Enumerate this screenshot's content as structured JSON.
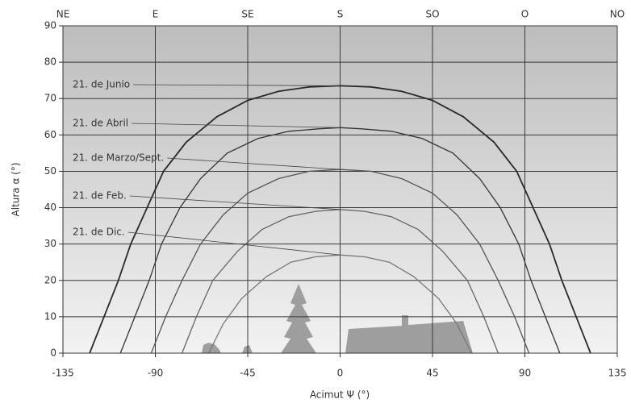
{
  "chart_data": {
    "type": "line",
    "xlabel": "Acimut Ψ (°)",
    "ylabel": "Altura α (°)",
    "xlim": [
      -135,
      135
    ],
    "ylim": [
      0,
      90
    ],
    "xticks": [
      -135,
      -90,
      -45,
      0,
      45,
      90,
      135
    ],
    "yticks": [
      0,
      10,
      20,
      30,
      40,
      50,
      60,
      70,
      80,
      90
    ],
    "top_ticks": [
      {
        "value": -135,
        "label": "NE"
      },
      {
        "value": -90,
        "label": "E"
      },
      {
        "value": -45,
        "label": "SE"
      },
      {
        "value": 0,
        "label": "S"
      },
      {
        "value": 45,
        "label": "SO"
      },
      {
        "value": 90,
        "label": "O"
      },
      {
        "value": 135,
        "label": "NO"
      }
    ],
    "grid": true,
    "series": [
      {
        "name": "21. de Junio",
        "color": "#2a2a2a",
        "x": [
          -122,
          -115,
          -108,
          -102,
          -94,
          -86,
          -75,
          -60,
          -45,
          -30,
          -15,
          0,
          15,
          30,
          45,
          60,
          75,
          86,
          94,
          102,
          108,
          115,
          122
        ],
        "values": [
          0,
          10,
          20,
          30,
          40,
          50,
          58,
          65,
          69.5,
          72,
          73.2,
          73.5,
          73.2,
          72,
          69.5,
          65,
          58,
          50,
          40,
          30,
          20,
          10,
          0
        ]
      },
      {
        "name": "21. de Abril",
        "color": "#333333",
        "x": [
          -107,
          -100,
          -93,
          -87,
          -78,
          -68,
          -55,
          -40,
          -25,
          -10,
          0,
          10,
          25,
          40,
          55,
          68,
          78,
          87,
          93,
          100,
          107
        ],
        "values": [
          0,
          10,
          20,
          30,
          40,
          48,
          55,
          59,
          61,
          61.7,
          62,
          61.7,
          61,
          59,
          55,
          48,
          40,
          30,
          20,
          10,
          0
        ]
      },
      {
        "name": "21. de Marzo/Sept.",
        "color": "#555555",
        "x": [
          -92,
          -85,
          -77,
          -68,
          -57,
          -45,
          -30,
          -15,
          0,
          15,
          30,
          45,
          57,
          68,
          77,
          85,
          92
        ],
        "values": [
          0,
          10,
          20,
          30,
          38,
          44,
          48,
          50,
          50.5,
          50,
          48,
          44,
          38,
          30,
          20,
          10,
          0
        ]
      },
      {
        "name": "21. de Feb.",
        "color": "#666666",
        "x": [
          -77,
          -70,
          -62,
          -50,
          -38,
          -25,
          -12,
          0,
          12,
          25,
          38,
          50,
          62,
          70,
          77
        ],
        "values": [
          0,
          10,
          20,
          28,
          34,
          37.5,
          39,
          39.5,
          39,
          37.5,
          34,
          28,
          20,
          10,
          0
        ]
      },
      {
        "name": "21. de Dic.",
        "color": "#777777",
        "x": [
          -64,
          -57,
          -48,
          -36,
          -24,
          -12,
          0,
          12,
          24,
          36,
          48,
          57,
          64
        ],
        "values": [
          0,
          8,
          15,
          21,
          25,
          26.5,
          27,
          26.5,
          25,
          21,
          15,
          8,
          0
        ]
      }
    ]
  }
}
